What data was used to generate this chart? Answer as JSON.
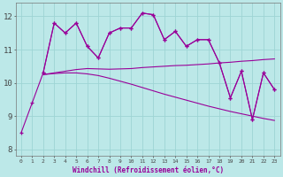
{
  "x_all": [
    0,
    1,
    2,
    3,
    4,
    5,
    6,
    7,
    8,
    9,
    10,
    11,
    12,
    13,
    14,
    15,
    16,
    17,
    18,
    19,
    20,
    21,
    22,
    23
  ],
  "line1_x": [
    0,
    1,
    2,
    3,
    4,
    5,
    6,
    7,
    8,
    9,
    10,
    11,
    12,
    13,
    14,
    15,
    16,
    17,
    18,
    19,
    20,
    21,
    22,
    23
  ],
  "line1_y": [
    8.5,
    9.4,
    10.3,
    11.8,
    11.5,
    11.8,
    11.1,
    10.75,
    11.5,
    11.65,
    11.65,
    12.1,
    12.05,
    11.3,
    11.55,
    11.1,
    11.3,
    11.3,
    10.6,
    9.55,
    10.35,
    8.9,
    10.3,
    9.8
  ],
  "line2_x": [
    2,
    3,
    4,
    5,
    6,
    7,
    8,
    9,
    10,
    11,
    12,
    13,
    14,
    15,
    16,
    17,
    18,
    19,
    20,
    21,
    22,
    23
  ],
  "line2_y": [
    10.3,
    11.8,
    11.5,
    11.8,
    11.1,
    10.75,
    11.5,
    11.65,
    11.65,
    12.1,
    12.05,
    11.3,
    11.55,
    11.1,
    11.3,
    11.3,
    10.6,
    9.55,
    10.35,
    8.9,
    10.3,
    9.8
  ],
  "line3_x": [
    2,
    3,
    4,
    5,
    6,
    7,
    8,
    9,
    10,
    11,
    12,
    13,
    14,
    15,
    16,
    17,
    18,
    19,
    20,
    21,
    22,
    23
  ],
  "line3_y": [
    10.25,
    10.3,
    10.35,
    10.4,
    10.43,
    10.42,
    10.41,
    10.42,
    10.43,
    10.46,
    10.48,
    10.5,
    10.52,
    10.53,
    10.55,
    10.57,
    10.6,
    10.62,
    10.65,
    10.67,
    10.7,
    10.72
  ],
  "line4_x": [
    2,
    3,
    4,
    5,
    6,
    7,
    8,
    9,
    10,
    11,
    12,
    13,
    14,
    15,
    16,
    17,
    18,
    19,
    20,
    21,
    22,
    23
  ],
  "line4_y": [
    10.25,
    10.28,
    10.3,
    10.3,
    10.27,
    10.22,
    10.14,
    10.05,
    9.96,
    9.86,
    9.76,
    9.66,
    9.57,
    9.48,
    9.39,
    9.3,
    9.22,
    9.14,
    9.07,
    9.0,
    8.93,
    8.87
  ],
  "bg_color": "#bce8e8",
  "grid_color": "#9ed4d4",
  "line_color": "#990099",
  "ylabel_vals": [
    8,
    9,
    10,
    11,
    12
  ],
  "ylim": [
    7.8,
    12.4
  ],
  "xlim": [
    -0.5,
    23.5
  ],
  "xlabel": "Windchill (Refroidissement éolien,°C)"
}
